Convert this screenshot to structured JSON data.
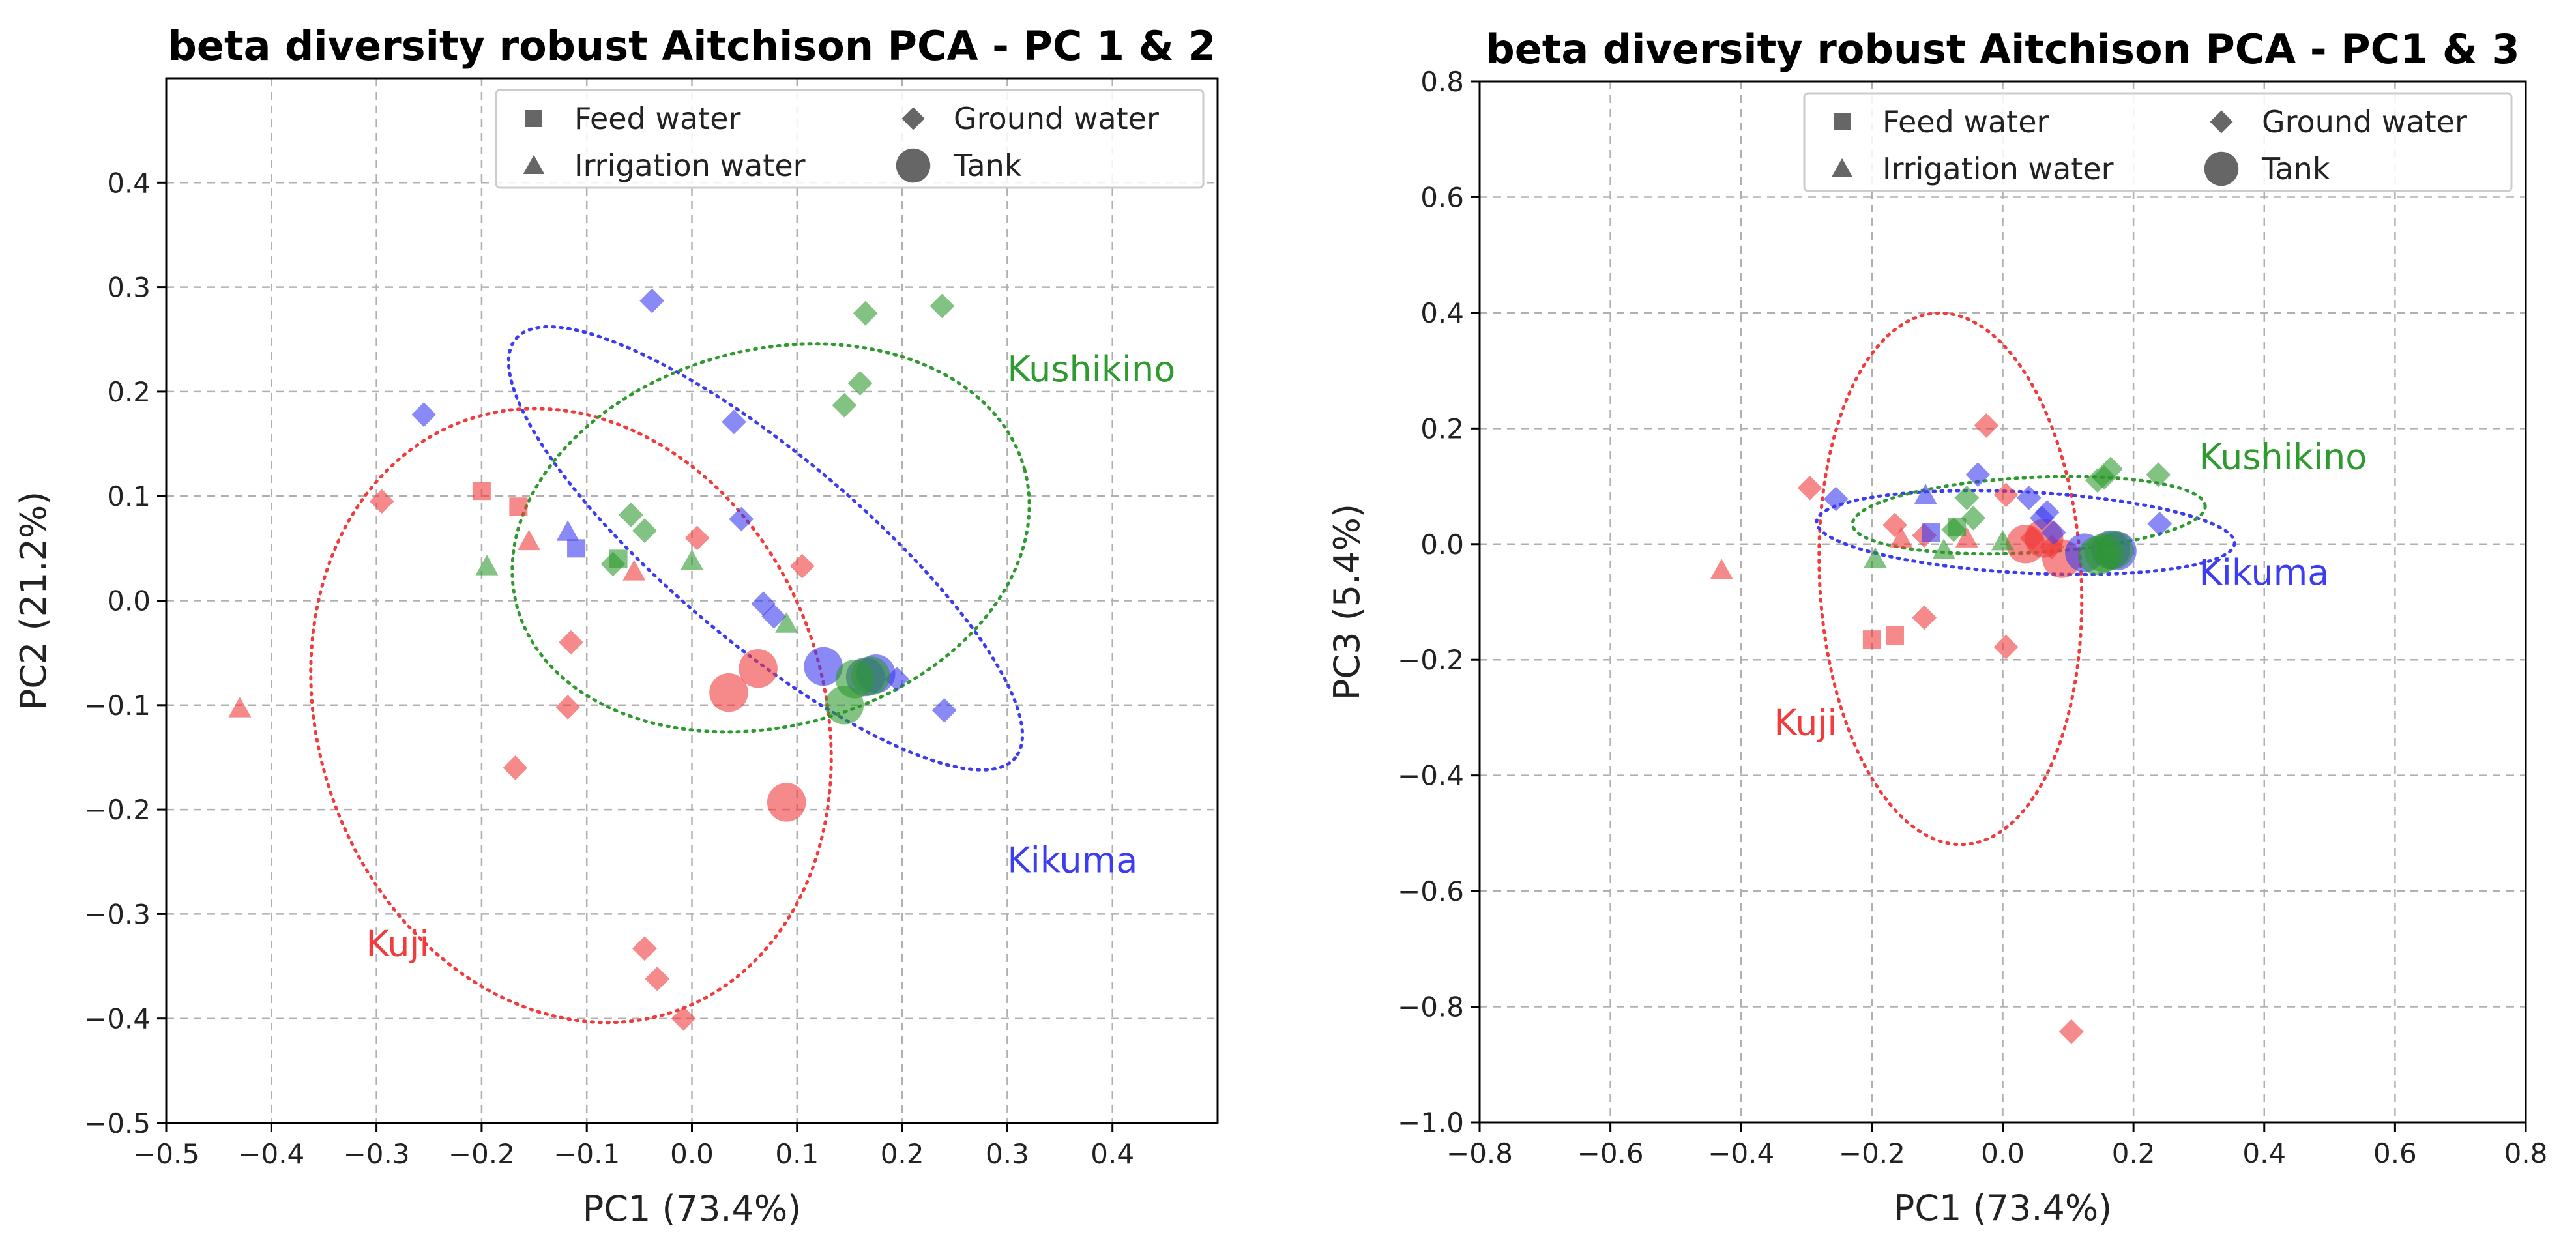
{
  "colors": {
    "Kuji": "#f03c3c",
    "Kikuma": "#3c3cf0",
    "Kushikino": "#2f9a2f",
    "legend_marker": "#555555"
  },
  "legend": [
    {
      "shape": "square",
      "label": "Feed water"
    },
    {
      "shape": "diamond",
      "label": "Ground water"
    },
    {
      "shape": "triangle",
      "label": "Irrigation water"
    },
    {
      "shape": "circle",
      "label": "Tank"
    }
  ],
  "chart_data": [
    {
      "type": "scatter",
      "title": "beta diversity robust Aitchison PCA - PC 1 & 2",
      "xlabel": "PC1 (73.4%)",
      "ylabel": "PC2 (21.2%)",
      "xlim": [
        -0.5,
        0.5
      ],
      "ylim": [
        -0.5,
        0.5
      ],
      "xticks": [
        -0.5,
        -0.4,
        -0.3,
        -0.2,
        -0.1,
        0.0,
        0.1,
        0.2,
        0.3,
        0.4
      ],
      "yticks": [
        -0.5,
        -0.4,
        -0.3,
        -0.2,
        -0.1,
        0.0,
        0.1,
        0.2,
        0.3,
        0.4
      ],
      "grid": true,
      "legend_position": "top-right",
      "group_labels": [
        {
          "group": "Kushikino",
          "text": "Kushikino",
          "x": 0.3,
          "y": 0.21
        },
        {
          "group": "Kikuma",
          "text": "Kikuma",
          "x": 0.3,
          "y": -0.26
        },
        {
          "group": "Kuji",
          "text": "Kuji",
          "x": -0.31,
          "y": -0.34
        }
      ],
      "ellipses": [
        {
          "group": "Kuji",
          "cx": -0.115,
          "cy": -0.11,
          "rx": 0.24,
          "ry": 0.3,
          "angle": 20
        },
        {
          "group": "Kikuma",
          "cx": 0.07,
          "cy": 0.05,
          "rx": 0.31,
          "ry": 0.09,
          "angle": -40
        },
        {
          "group": "Kushikino",
          "cx": 0.075,
          "cy": 0.06,
          "rx": 0.25,
          "ry": 0.18,
          "angle": 15
        }
      ],
      "series": [
        {
          "group": "Kuji",
          "type": "Feed water",
          "points": [
            [
              -0.2,
              0.105
            ],
            [
              -0.165,
              0.09
            ]
          ]
        },
        {
          "group": "Kuji",
          "type": "Ground water",
          "points": [
            [
              -0.295,
              0.095
            ],
            [
              0.005,
              0.06
            ],
            [
              0.105,
              0.033
            ],
            [
              -0.115,
              -0.04
            ],
            [
              -0.118,
              -0.102
            ],
            [
              -0.168,
              -0.16
            ],
            [
              -0.045,
              -0.333
            ],
            [
              -0.033,
              -0.362
            ],
            [
              -0.008,
              -0.4
            ]
          ]
        },
        {
          "group": "Kuji",
          "type": "Irrigation water",
          "points": [
            [
              -0.43,
              -0.103
            ],
            [
              -0.155,
              0.057
            ],
            [
              -0.055,
              0.028
            ]
          ]
        },
        {
          "group": "Kuji",
          "type": "Tank",
          "points": [
            [
              0.035,
              -0.088
            ],
            [
              0.063,
              -0.065
            ],
            [
              0.09,
              -0.193
            ]
          ]
        },
        {
          "group": "Kikuma",
          "type": "Feed water",
          "points": [
            [
              -0.11,
              0.05
            ]
          ]
        },
        {
          "group": "Kikuma",
          "type": "Ground water",
          "points": [
            [
              -0.038,
              0.287
            ],
            [
              -0.255,
              0.178
            ],
            [
              0.04,
              0.171
            ],
            [
              0.047,
              0.078
            ],
            [
              0.068,
              -0.003
            ],
            [
              0.078,
              -0.015
            ],
            [
              0.195,
              -0.075
            ],
            [
              0.24,
              -0.105
            ]
          ]
        },
        {
          "group": "Kikuma",
          "type": "Irrigation water",
          "points": [
            [
              -0.118,
              0.066
            ]
          ]
        },
        {
          "group": "Kikuma",
          "type": "Tank",
          "points": [
            [
              0.125,
              -0.063
            ],
            [
              0.165,
              -0.073
            ],
            [
              0.175,
              -0.07
            ]
          ]
        },
        {
          "group": "Kushikino",
          "type": "Feed water",
          "points": [
            [
              -0.07,
              0.04
            ]
          ]
        },
        {
          "group": "Kushikino",
          "type": "Ground water",
          "points": [
            [
              0.238,
              0.282
            ],
            [
              0.165,
              0.275
            ],
            [
              0.16,
              0.208
            ],
            [
              0.145,
              0.187
            ],
            [
              -0.058,
              0.082
            ],
            [
              -0.045,
              0.067
            ],
            [
              -0.075,
              0.035
            ]
          ]
        },
        {
          "group": "Kushikino",
          "type": "Irrigation water",
          "points": [
            [
              -0.195,
              0.033
            ],
            [
              0.0,
              0.038
            ],
            [
              0.09,
              -0.022
            ]
          ]
        },
        {
          "group": "Kushikino",
          "type": "Tank",
          "points": [
            [
              0.145,
              -0.1
            ],
            [
              0.155,
              -0.075
            ],
            [
              0.17,
              -0.072
            ]
          ]
        }
      ]
    },
    {
      "type": "scatter",
      "title": "beta diversity robust Aitchison PCA - PC1 & 3",
      "xlabel": "PC1 (73.4%)",
      "ylabel": "PC3 (5.4%)",
      "xlim": [
        -0.8,
        0.8
      ],
      "ylim": [
        -1.0,
        0.8
      ],
      "xticks": [
        -0.8,
        -0.6,
        -0.4,
        -0.2,
        0.0,
        0.2,
        0.4,
        0.6,
        0.8
      ],
      "yticks": [
        -1.0,
        -0.8,
        -0.6,
        -0.4,
        -0.2,
        0.0,
        0.2,
        0.4,
        0.6,
        0.8
      ],
      "grid": true,
      "legend_position": "top-right",
      "group_labels": [
        {
          "group": "Kushikino",
          "text": "Kushikino",
          "x": 0.3,
          "y": 0.13
        },
        {
          "group": "Kikuma",
          "text": "Kikuma",
          "x": 0.3,
          "y": -0.07
        },
        {
          "group": "Kuji",
          "text": "Kuji",
          "x": -0.35,
          "y": -0.33
        }
      ],
      "ellipses": [
        {
          "group": "Kuji",
          "cx": -0.08,
          "cy": -0.06,
          "rx": 0.2,
          "ry": 0.46,
          "angle": 3
        },
        {
          "group": "Kikuma",
          "cx": 0.035,
          "cy": 0.02,
          "rx": 0.32,
          "ry": 0.07,
          "angle": -3
        },
        {
          "group": "Kushikino",
          "cx": 0.04,
          "cy": 0.05,
          "rx": 0.27,
          "ry": 0.065,
          "angle": 3
        }
      ],
      "series": [
        {
          "group": "Kuji",
          "type": "Feed water",
          "points": [
            [
              -0.2,
              -0.165
            ],
            [
              -0.165,
              -0.158
            ]
          ]
        },
        {
          "group": "Kuji",
          "type": "Ground water",
          "points": [
            [
              -0.295,
              0.097
            ],
            [
              -0.025,
              0.205
            ],
            [
              0.005,
              0.085
            ],
            [
              -0.165,
              0.033
            ],
            [
              -0.12,
              -0.127
            ],
            [
              -0.12,
              0.015
            ],
            [
              0.005,
              -0.178
            ],
            [
              0.105,
              -0.843
            ],
            [
              0.045,
              0.01
            ],
            [
              0.075,
              -0.005
            ]
          ]
        },
        {
          "group": "Kuji",
          "type": "Irrigation water",
          "points": [
            [
              -0.43,
              -0.045
            ],
            [
              -0.155,
              0.01
            ],
            [
              -0.055,
              0.01
            ]
          ]
        },
        {
          "group": "Kuji",
          "type": "Tank",
          "points": [
            [
              0.035,
              0.0
            ],
            [
              0.063,
              0.01
            ],
            [
              0.09,
              -0.025
            ]
          ]
        },
        {
          "group": "Kikuma",
          "type": "Feed water",
          "points": [
            [
              -0.11,
              0.02
            ]
          ]
        },
        {
          "group": "Kikuma",
          "type": "Ground water",
          "points": [
            [
              -0.255,
              0.078
            ],
            [
              -0.038,
              0.12
            ],
            [
              0.04,
              0.08
            ],
            [
              0.06,
              0.045
            ],
            [
              0.068,
              0.055
            ],
            [
              0.078,
              0.02
            ],
            [
              0.24,
              0.035
            ]
          ]
        },
        {
          "group": "Kikuma",
          "type": "Irrigation water",
          "points": [
            [
              -0.118,
              0.085
            ]
          ]
        },
        {
          "group": "Kikuma",
          "type": "Tank",
          "points": [
            [
              0.125,
              -0.015
            ],
            [
              0.165,
              -0.01
            ],
            [
              0.175,
              -0.012
            ]
          ]
        },
        {
          "group": "Kushikino",
          "type": "Feed water",
          "points": [
            [
              -0.07,
              0.03
            ]
          ]
        },
        {
          "group": "Kushikino",
          "type": "Ground water",
          "points": [
            [
              0.238,
              0.12
            ],
            [
              0.165,
              0.13
            ],
            [
              0.155,
              0.115
            ],
            [
              0.145,
              0.11
            ],
            [
              -0.055,
              0.08
            ],
            [
              -0.045,
              0.045
            ],
            [
              -0.075,
              0.025
            ]
          ]
        },
        {
          "group": "Kushikino",
          "type": "Irrigation water",
          "points": [
            [
              -0.195,
              -0.025
            ],
            [
              0.0,
              0.005
            ],
            [
              -0.09,
              -0.01
            ]
          ]
        },
        {
          "group": "Kushikino",
          "type": "Tank",
          "points": [
            [
              0.145,
              -0.02
            ],
            [
              0.155,
              -0.015
            ],
            [
              0.17,
              -0.01
            ]
          ]
        }
      ]
    }
  ]
}
